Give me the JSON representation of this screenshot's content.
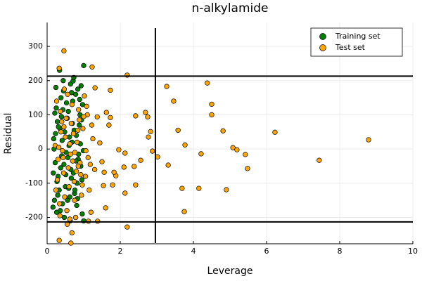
{
  "chart_data": {
    "type": "scatter",
    "title": "n-alkylamide",
    "x_label": "Leverage",
    "y_label": "Residual",
    "xlim": [
      0,
      10
    ],
    "ylim": [
      -277,
      370
    ],
    "xticks": [
      0,
      2,
      4,
      6,
      8,
      10
    ],
    "yticks": [
      -200,
      -100,
      0,
      100,
      200,
      300
    ],
    "grid": true,
    "legend": "upper right",
    "hlines": [
      213,
      -213
    ],
    "vlines": [
      2.96
    ],
    "line_color": "#000000",
    "series": [
      {
        "name": "Training set",
        "color": "#008000",
        "x": [
          0.2,
          0.25,
          0.3,
          0.35,
          0.4,
          0.45,
          0.5,
          0.55,
          0.6,
          0.65,
          0.7,
          0.75,
          0.8,
          0.85,
          0.9,
          0.95,
          0.18,
          0.22,
          0.28,
          0.33,
          0.38,
          0.42,
          0.48,
          0.52,
          0.58,
          0.62,
          0.68,
          0.72,
          0.78,
          0.82,
          0.88,
          0.92,
          0.97,
          0.16,
          0.24,
          0.36,
          0.44,
          0.56,
          0.64,
          0.76,
          0.84,
          0.96,
          0.19,
          0.27,
          0.31,
          0.46,
          0.53,
          0.66,
          0.74,
          0.86,
          0.94,
          0.21,
          0.29,
          0.41,
          0.57,
          0.69,
          0.81,
          0.89,
          0.99,
          0.71,
          0.73,
          1.0,
          0.34,
          0.47,
          0.63,
          1.0,
          0.17,
          0.23,
          0.37,
          0.43,
          0.59,
          0.67,
          0.79,
          0.91,
          0.26,
          0.39,
          0.51,
          0.61,
          0.83,
          0.93
        ],
        "values": [
          -150,
          120,
          -80,
          60,
          -20,
          170,
          -110,
          90,
          10,
          -60,
          140,
          -130,
          40,
          -30,
          100,
          -90,
          30,
          -40,
          80,
          -120,
          150,
          -160,
          50,
          -10,
          110,
          -140,
          20,
          -70,
          160,
          -100,
          70,
          -50,
          130,
          -170,
          180,
          -180,
          200,
          -150,
          190,
          -120,
          175,
          -190,
          0,
          -95,
          65,
          -45,
          135,
          -85,
          55,
          -15,
          85,
          105,
          -135,
          25,
          -25,
          75,
          -165,
          145,
          -5,
          199,
          209,
          244,
          230,
          -200,
          -210,
          -210,
          -70,
          45,
          -55,
          115,
          -115,
          165,
          -35,
          15,
          -185,
          95,
          -75,
          35,
          -145,
          185
        ]
      },
      {
        "name": "Test set",
        "color": "#ffa500",
        "x": [
          0.22,
          0.3,
          0.38,
          0.45,
          0.52,
          0.6,
          0.68,
          0.75,
          0.82,
          0.9,
          0.98,
          1.05,
          1.1,
          1.15,
          0.26,
          0.34,
          0.42,
          0.5,
          0.58,
          0.66,
          0.74,
          0.86,
          0.94,
          1.02,
          1.12,
          0.28,
          0.36,
          0.48,
          0.56,
          0.64,
          0.72,
          0.8,
          0.88,
          0.96,
          1.08,
          0.24,
          0.4,
          0.54,
          0.62,
          0.7,
          0.78,
          0.84,
          0.92,
          1.0,
          1.18,
          1.25,
          1.3,
          1.22,
          0.32,
          0.44,
          0.46,
          0.76,
          0.85,
          1.06,
          0.55,
          0.62,
          0.35,
          1.2,
          0.47,
          0.68,
          3.27,
          3.46,
          3.58,
          3.77,
          3.69,
          3.75,
          4.15,
          4.21,
          4.38,
          4.5,
          4.5,
          4.81,
          4.9,
          5.08,
          5.19,
          5.42,
          5.48,
          6.23,
          7.44,
          8.79,
          3.31,
          3.02,
          2.88,
          2.19,
          2.19,
          2.83,
          2.69,
          2.75,
          2.77,
          2.56,
          2.42,
          2.38,
          2.42,
          2.13,
          2.13,
          2.1,
          1.96,
          1.88,
          1.83,
          1.69,
          1.73,
          1.62,
          1.56,
          1.6,
          1.44,
          1.5,
          1.37,
          1.31,
          1.23,
          1.38,
          1.13,
          0.33,
          0.65,
          0.46,
          0.33,
          1.73,
          1.54,
          1.79
        ],
        "values": [
          10,
          -30,
          50,
          -70,
          90,
          -110,
          130,
          -150,
          20,
          -40,
          60,
          -80,
          100,
          -120,
          140,
          -160,
          -5,
          35,
          -55,
          75,
          -95,
          115,
          -135,
          155,
          -25,
          -90,
          110,
          -140,
          160,
          -15,
          45,
          -65,
          85,
          -105,
          125,
          -120,
          80,
          -180,
          15,
          -35,
          -200,
          55,
          -75,
          95,
          -45,
          30,
          -60,
          70,
          5,
          -25,
          65,
          -10,
          -50,
          -5,
          -220,
          -205,
          -195,
          -185,
          175,
          -245,
          183,
          140,
          55,
          12,
          -115,
          -183,
          -115,
          -14,
          193,
          131,
          100,
          53,
          -119,
          4,
          -2,
          -16,
          -57,
          49,
          -33,
          27,
          -47,
          -23,
          -6,
          216,
          -228,
          51,
          107,
          94,
          35,
          -33,
          97,
          -51,
          -105,
          -12,
          -129,
          -53,
          -2,
          -78,
          -68,
          70,
          92,
          107,
          -68,
          -172,
          18,
          -37,
          94,
          179,
          240,
          -211,
          -211,
          -267,
          -275,
          287,
          236,
          172,
          -107,
          -105
        ]
      }
    ]
  }
}
